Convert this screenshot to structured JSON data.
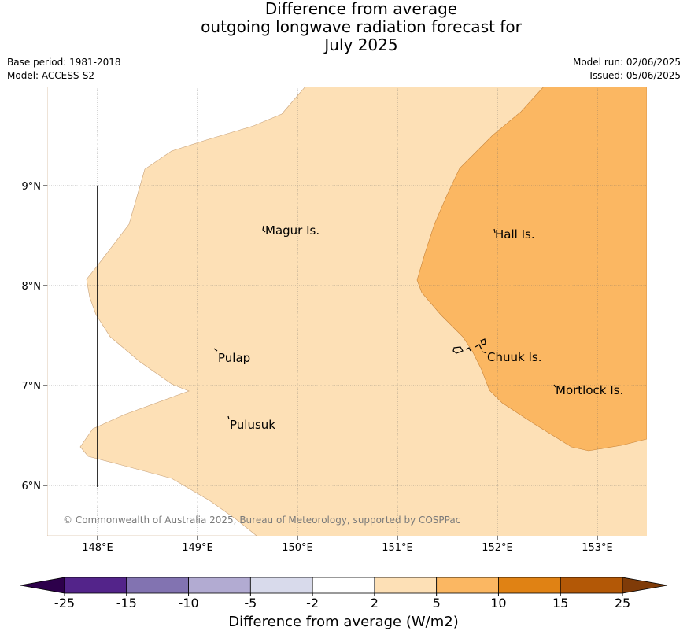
{
  "title": {
    "line1": "Difference from average",
    "line2": "outgoing longwave radiation forecast for",
    "line3": "July 2025"
  },
  "info": {
    "base_period": "Base period: 1981-2018",
    "model": "Model: ACCESS-S2",
    "model_run": "Model run: 02/06/2025",
    "issued": "Issued: 05/06/2025"
  },
  "map": {
    "lat_labels": [
      "9°N",
      "8°N",
      "7°N",
      "6°N"
    ],
    "lon_labels": [
      "148°E",
      "149°E",
      "150°E",
      "151°E",
      "152°E",
      "153°E"
    ],
    "places": [
      {
        "name": "Magur Is."
      },
      {
        "name": "Hall Is."
      },
      {
        "name": "Pulap"
      },
      {
        "name": "Chuuk Is."
      },
      {
        "name": "Mortlock Is."
      },
      {
        "name": "Pulusuk"
      }
    ],
    "copyright": "© Commonwealth of Australia 2025, Bureau of Meteorology, supported by COSPPac",
    "fill_colors": {
      "2_to_5": "#fde0b6",
      "5_to_10": "#fbb762"
    }
  },
  "colorbar": {
    "label": "Difference from average (W/m2)",
    "ticks": [
      "-25",
      "-15",
      "-10",
      "-5",
      "-2",
      "2",
      "5",
      "10",
      "15",
      "25"
    ],
    "colors": [
      "#53248a",
      "#8273b1",
      "#b2abd2",
      "#d8daeb",
      "#ffffff",
      "#fde0b6",
      "#fbb762",
      "#e08214",
      "#b35806"
    ],
    "extend_low_color": "#2d004b",
    "extend_high_color": "#7f3b08"
  }
}
